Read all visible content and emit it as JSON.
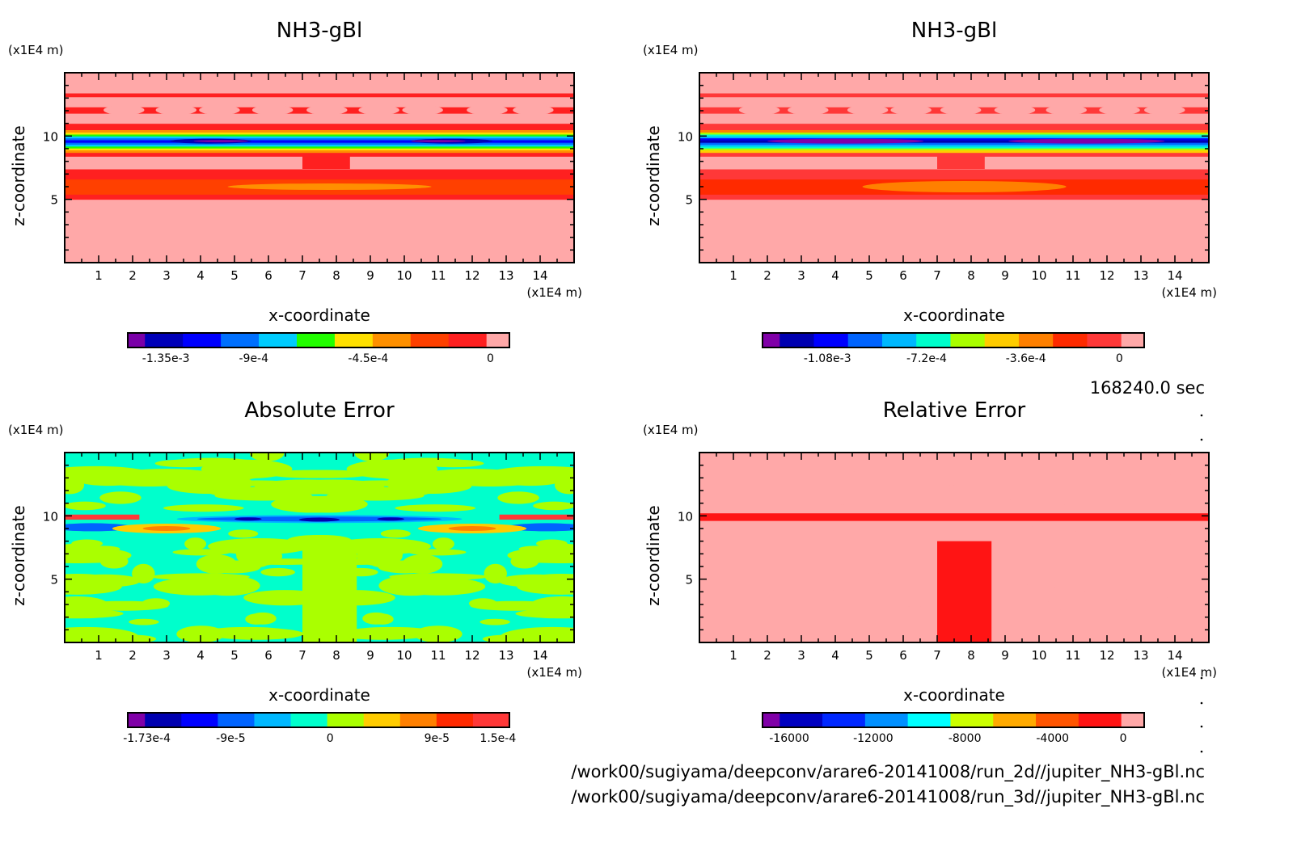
{
  "figure": {
    "time_label": "168240.0 sec",
    "file_paths": [
      "/work00/sugiyama/deepconv/arare6-20141008/run_2d//jupiter_NH3-gBl.nc",
      "/work00/sugiyama/deepconv/arare6-20141008/run_3d//jupiter_NH3-gBl.nc"
    ]
  },
  "chart_data": [
    {
      "type": "heatmap",
      "id": "top-left",
      "title": "NH3-gBl",
      "xlabel": "x-coordinate",
      "ylabel": "z-coordinate",
      "x_unit": "(x1E4 m)",
      "y_unit": "(x1E4 m)",
      "xlim": [
        0,
        15
      ],
      "ylim": [
        0,
        15
      ],
      "x_ticks": [
        1,
        2,
        3,
        4,
        5,
        6,
        7,
        8,
        9,
        10,
        11,
        12,
        13,
        14
      ],
      "y_ticks": [
        5,
        10
      ],
      "colorbar": {
        "colors": [
          "#7a00a8",
          "#0000b8",
          "#0000ff",
          "#0070ff",
          "#00ccff",
          "#22ff00",
          "#ffe000",
          "#ff9000",
          "#ff4000",
          "#ff2020",
          "#ffa8a8"
        ],
        "tick_labels": [
          "-1.35e-3",
          "-9e-4",
          "-4.5e-4",
          "0"
        ],
        "range": [
          -0.00135,
          6e-05
        ]
      },
      "bands": [
        {
          "z": [
            0,
            5.0
          ],
          "c": 10
        },
        {
          "z": [
            5.0,
            5.4
          ],
          "c": 9
        },
        {
          "z": [
            5.4,
            6.6
          ],
          "c": 8
        },
        {
          "z": [
            6.6,
            7.4
          ],
          "c": 9
        },
        {
          "z": [
            7.4,
            8.4
          ],
          "c": 10
        },
        {
          "z": [
            8.4,
            8.7
          ],
          "c": 9
        },
        {
          "z": [
            8.7,
            8.9
          ],
          "c": 7
        },
        {
          "z": [
            8.9,
            9.05
          ],
          "c": 6
        },
        {
          "z": [
            9.05,
            9.2
          ],
          "c": 5
        },
        {
          "z": [
            9.2,
            9.35
          ],
          "c": 4
        },
        {
          "z": [
            9.35,
            9.5
          ],
          "c": 3
        },
        {
          "z": [
            9.5,
            9.7
          ],
          "c": 2
        },
        {
          "z": [
            9.7,
            9.85
          ],
          "c": 3
        },
        {
          "z": [
            9.85,
            10.0
          ],
          "c": 4
        },
        {
          "z": [
            10.0,
            10.15
          ],
          "c": 5
        },
        {
          "z": [
            10.15,
            10.3
          ],
          "c": 6
        },
        {
          "z": [
            10.3,
            10.5
          ],
          "c": 7
        },
        {
          "z": [
            10.5,
            11.0
          ],
          "c": 9
        },
        {
          "z": [
            11.0,
            11.8
          ],
          "c": 10
        },
        {
          "z": [
            11.8,
            12.3
          ],
          "c": 9
        },
        {
          "z": [
            12.3,
            13.1
          ],
          "c": 10
        },
        {
          "z": [
            13.1,
            13.4
          ],
          "c": 9
        },
        {
          "z": [
            13.4,
            15
          ],
          "c": 10
        }
      ]
    },
    {
      "type": "heatmap",
      "id": "top-right",
      "title": "NH3-gBl",
      "xlabel": "x-coordinate",
      "ylabel": "z-coordinate",
      "x_unit": "(x1E4 m)",
      "y_unit": "(x1E4 m)",
      "xlim": [
        0,
        15
      ],
      "ylim": [
        0,
        15
      ],
      "x_ticks": [
        1,
        2,
        3,
        4,
        5,
        6,
        7,
        8,
        9,
        10,
        11,
        12,
        13,
        14
      ],
      "y_ticks": [
        5,
        10
      ],
      "colorbar": {
        "colors": [
          "#8000a8",
          "#0000b0",
          "#0000ff",
          "#0064ff",
          "#00b8ff",
          "#00ffcc",
          "#aaff00",
          "#ffcc00",
          "#ff8000",
          "#ff2a00",
          "#ff3838",
          "#ffa8a8"
        ],
        "tick_labels": [
          "-1.08e-3",
          "-7.2e-4",
          "-3.6e-4",
          "0"
        ],
        "range": [
          -0.00135,
          6e-05
        ]
      },
      "bands": [
        {
          "z": [
            0,
            5.0
          ],
          "c": 11
        },
        {
          "z": [
            5.0,
            5.4
          ],
          "c": 10
        },
        {
          "z": [
            5.4,
            6.6
          ],
          "c": 9
        },
        {
          "z": [
            6.6,
            7.4
          ],
          "c": 10
        },
        {
          "z": [
            7.4,
            8.4
          ],
          "c": 11
        },
        {
          "z": [
            8.4,
            8.7
          ],
          "c": 10
        },
        {
          "z": [
            8.7,
            8.9
          ],
          "c": 7
        },
        {
          "z": [
            8.9,
            9.05
          ],
          "c": 6
        },
        {
          "z": [
            9.05,
            9.2
          ],
          "c": 5
        },
        {
          "z": [
            9.2,
            9.35
          ],
          "c": 4
        },
        {
          "z": [
            9.35,
            9.5
          ],
          "c": 3
        },
        {
          "z": [
            9.5,
            9.7
          ],
          "c": 1
        },
        {
          "z": [
            9.7,
            9.85
          ],
          "c": 2
        },
        {
          "z": [
            9.85,
            10.0
          ],
          "c": 4
        },
        {
          "z": [
            10.0,
            10.15
          ],
          "c": 5
        },
        {
          "z": [
            10.15,
            10.3
          ],
          "c": 6
        },
        {
          "z": [
            10.3,
            10.5
          ],
          "c": 8
        },
        {
          "z": [
            10.5,
            11.0
          ],
          "c": 10
        },
        {
          "z": [
            11.0,
            11.8
          ],
          "c": 11
        },
        {
          "z": [
            11.8,
            12.3
          ],
          "c": 10
        },
        {
          "z": [
            12.3,
            13.1
          ],
          "c": 11
        },
        {
          "z": [
            13.1,
            13.4
          ],
          "c": 10
        },
        {
          "z": [
            13.4,
            15
          ],
          "c": 11
        }
      ]
    },
    {
      "type": "heatmap",
      "id": "bottom-left",
      "title": "Absolute Error",
      "xlabel": "x-coordinate",
      "ylabel": "z-coordinate",
      "x_unit": "(x1E4 m)",
      "y_unit": "(x1E4 m)",
      "xlim": [
        0,
        15
      ],
      "ylim": [
        0,
        15
      ],
      "x_ticks": [
        1,
        2,
        3,
        4,
        5,
        6,
        7,
        8,
        9,
        10,
        11,
        12,
        13,
        14
      ],
      "y_ticks": [
        5,
        10
      ],
      "colorbar": {
        "colors": [
          "#8000a8",
          "#0000b0",
          "#0000ff",
          "#0064ff",
          "#00b8ff",
          "#00ffcc",
          "#aaff00",
          "#ffcc00",
          "#ff8000",
          "#ff2a00",
          "#ff3838"
        ],
        "tick_labels": [
          "-1.73e-4",
          "-9e-5",
          "0",
          "9e-5",
          "1.5e-4"
        ],
        "range": [
          -0.000173,
          0.00015
        ]
      },
      "bands": [
        {
          "z": [
            0,
            15
          ],
          "c": 5
        }
      ]
    },
    {
      "type": "heatmap",
      "id": "bottom-right",
      "title": "Relative Error",
      "xlabel": "x-coordinate",
      "ylabel": "z-coordinate",
      "x_unit": "(x1E4 m)",
      "y_unit": "(x1E4 m)",
      "xlim": [
        0,
        15
      ],
      "ylim": [
        0,
        15
      ],
      "x_ticks": [
        1,
        2,
        3,
        4,
        5,
        6,
        7,
        8,
        9,
        10,
        11,
        12,
        13,
        14
      ],
      "y_ticks": [
        5,
        10
      ],
      "colorbar": {
        "colors": [
          "#8000a8",
          "#0000c0",
          "#0028ff",
          "#0090ff",
          "#00ffff",
          "#ccff00",
          "#ffaa00",
          "#ff5500",
          "#ff1414",
          "#ffa8a8"
        ],
        "tick_labels": [
          "-16000",
          "-12000",
          "-8000",
          "-4000",
          "0"
        ],
        "range": [
          -17500,
          800
        ]
      },
      "bands": [
        {
          "z": [
            0,
            15
          ],
          "c": 9
        }
      ]
    }
  ]
}
